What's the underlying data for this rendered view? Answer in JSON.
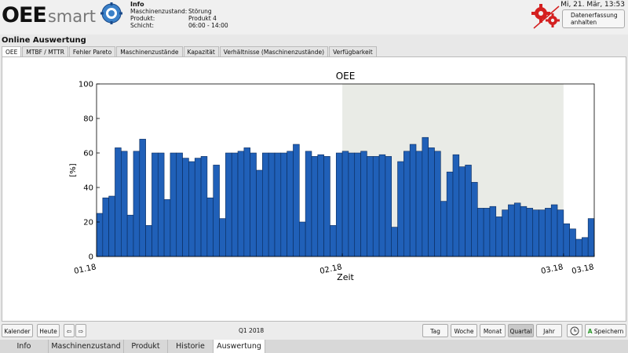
{
  "app": {
    "logo_main": "OEE",
    "logo_sub": "smart"
  },
  "info": {
    "title": "Info",
    "rows": [
      {
        "label": "Maschinenzustand:",
        "value": "Störung"
      },
      {
        "label": "Produkt:",
        "value": "Produkt 4"
      },
      {
        "label": "Schicht:",
        "value": "06:00 - 14:00"
      }
    ]
  },
  "header": {
    "datetime": "Mi, 21. Mär, 13:53",
    "stop_line1": "Datenerfassung",
    "stop_line2": "anhalten"
  },
  "section_title": "Online Auswertung",
  "tabs": [
    {
      "label": "OEE",
      "active": true
    },
    {
      "label": "MTBF / MTTR"
    },
    {
      "label": "Fehler Pareto"
    },
    {
      "label": "Maschinenzustände"
    },
    {
      "label": "Kapazität"
    },
    {
      "label": "Verhältnisse (Maschinenzustände)"
    },
    {
      "label": "Verfügbarkeit"
    }
  ],
  "chart_data": {
    "type": "bar",
    "title": "OEE",
    "xlabel": "Zeit",
    "ylabel": "[%]",
    "ylim": [
      0,
      100
    ],
    "yticks": [
      0,
      20,
      40,
      60,
      80,
      100
    ],
    "xticks": [
      "01.18",
      "02.18",
      "03.18",
      "03.18"
    ],
    "shaded_region": {
      "start_index": 40,
      "end_index": 76
    },
    "bar_color": "#2060b8",
    "values": [
      25,
      34,
      35,
      63,
      61,
      24,
      61,
      68,
      18,
      60,
      60,
      33,
      60,
      60,
      57,
      55,
      57,
      58,
      34,
      53,
      22,
      60,
      60,
      61,
      63,
      60,
      50,
      60,
      60,
      60,
      60,
      61,
      65,
      20,
      61,
      58,
      59,
      58,
      18,
      60,
      61,
      60,
      60,
      61,
      58,
      58,
      59,
      58,
      17,
      55,
      61,
      65,
      61,
      69,
      63,
      61,
      32,
      49,
      59,
      52,
      53,
      43,
      28,
      28,
      29,
      23,
      27,
      30,
      31,
      29,
      28,
      27,
      27,
      28,
      30,
      27,
      19,
      16,
      10,
      11,
      22
    ]
  },
  "bottom": {
    "calendar": "Kalender",
    "today": "Heute",
    "period": "Q1 2018",
    "day": "Tag",
    "week": "Woche",
    "month": "Monat",
    "quarter": "Quartal",
    "year": "Jahr",
    "save": "Speichern"
  },
  "navtabs": [
    {
      "label": "Info"
    },
    {
      "label": "Maschinenzustand"
    },
    {
      "label": "Produkt"
    },
    {
      "label": "Historie"
    },
    {
      "label": "Auswertung",
      "active": true
    }
  ],
  "colors": {
    "accent_red": "#d42020",
    "bar": "#2060b8",
    "shade": "#e9ebe6"
  }
}
